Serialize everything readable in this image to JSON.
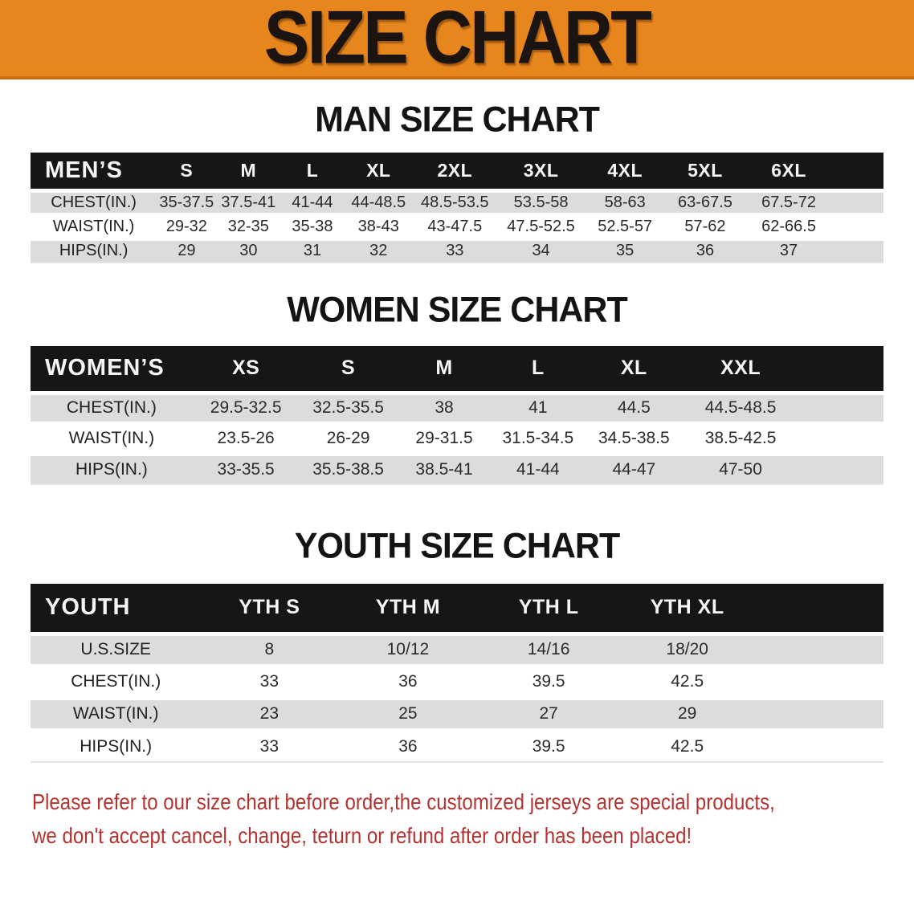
{
  "banner": {
    "title": "SIZE CHART",
    "bg_color": "#E8861E",
    "border_color": "#C96E10"
  },
  "sections": [
    {
      "heading": "MAN SIZE CHART",
      "table": {
        "label": "MEN’S",
        "columns": [
          "S",
          "M",
          "L",
          "XL",
          "2XL",
          "3XL",
          "4XL",
          "5XL",
          "6XL"
        ],
        "rows": [
          {
            "label": "CHEST(IN.)",
            "values": [
              "35-37.5",
              "37.5-41",
              "41-44",
              "44-48.5",
              "48.5-53.5",
              "53.5-58",
              "58-63",
              "63-67.5",
              "67.5-72"
            ]
          },
          {
            "label": "WAIST(IN.)",
            "values": [
              "29-32",
              "32-35",
              "35-38",
              "38-43",
              "43-47.5",
              "47.5-52.5",
              "52.5-57",
              "57-62",
              "62-66.5"
            ]
          },
          {
            "label": "HIPS(IN.)",
            "values": [
              "29",
              "30",
              "31",
              "32",
              "33",
              "34",
              "35",
              "36",
              "37"
            ]
          }
        ]
      }
    },
    {
      "heading": "WOMEN SIZE CHART",
      "table": {
        "label": "WOMEN’S",
        "columns": [
          "XS",
          "S",
          "M",
          "L",
          "XL",
          "XXL"
        ],
        "rows": [
          {
            "label": "CHEST(IN.)",
            "values": [
              "29.5-32.5",
              "32.5-35.5",
              "38",
              "41",
              "44.5",
              "44.5-48.5"
            ]
          },
          {
            "label": "WAIST(IN.)",
            "values": [
              "23.5-26",
              "26-29",
              "29-31.5",
              "31.5-34.5",
              "34.5-38.5",
              "38.5-42.5"
            ]
          },
          {
            "label": "HIPS(IN.)",
            "values": [
              "33-35.5",
              "35.5-38.5",
              "38.5-41",
              "41-44",
              "44-47",
              "47-50"
            ]
          }
        ]
      }
    },
    {
      "heading": "YOUTH SIZE CHART",
      "table": {
        "label": "YOUTH",
        "columns": [
          "YTH S",
          "YTH M",
          "YTH L",
          "YTH XL"
        ],
        "rows": [
          {
            "label": "U.S.SIZE",
            "values": [
              "8",
              "10/12",
              "14/16",
              "18/20"
            ]
          },
          {
            "label": "CHEST(IN.)",
            "values": [
              "33",
              "36",
              "39.5",
              "42.5"
            ]
          },
          {
            "label": "WAIST(IN.)",
            "values": [
              "23",
              "25",
              "27",
              "29"
            ]
          },
          {
            "label": "HIPS(IN.)",
            "values": [
              "33",
              "36",
              "39.5",
              "42.5"
            ]
          }
        ]
      }
    }
  ],
  "disclaimer": {
    "color": "#B43230",
    "lines": [
      "Please refer to our size chart before order,the customized jerseys are special products,",
      "we don't accept cancel, change, teturn or refund after order has been placed!"
    ]
  }
}
